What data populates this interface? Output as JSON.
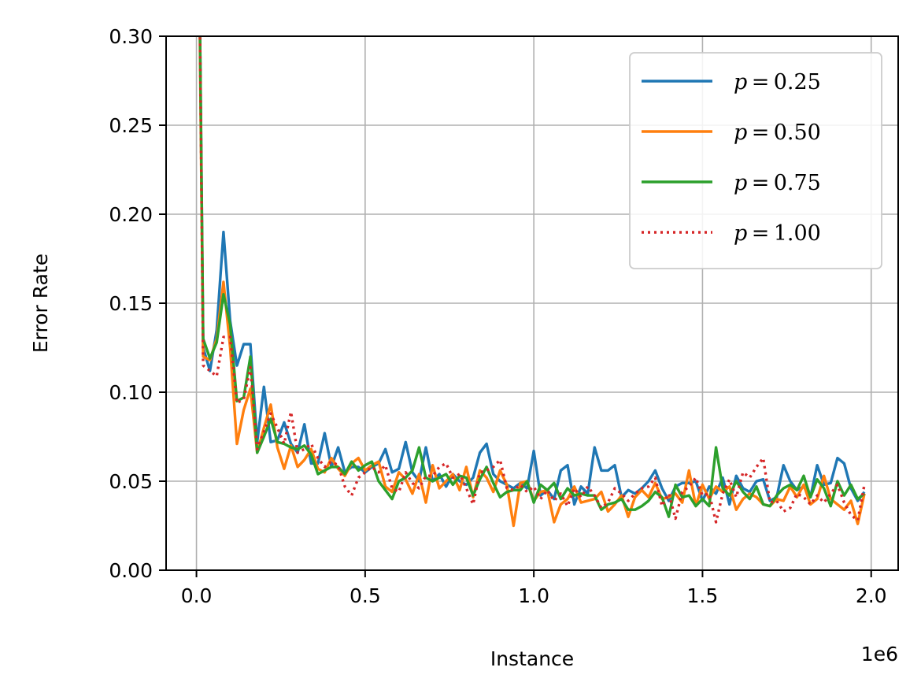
{
  "chart_data": {
    "type": "line",
    "title": "",
    "xlabel": "Instance",
    "ylabel": "Error Rate",
    "x_offset_label": "1e6",
    "xlim": [
      -90000,
      2080000
    ],
    "ylim": [
      0.0,
      0.3
    ],
    "x_ticks": [
      0,
      500000,
      1000000,
      1500000,
      2000000
    ],
    "x_tick_labels": [
      "0.0",
      "0.5",
      "1.0",
      "1.5",
      "2.0"
    ],
    "y_ticks": [
      0.0,
      0.05,
      0.1,
      0.15,
      0.2,
      0.25,
      0.3
    ],
    "y_tick_labels": [
      "0.00",
      "0.05",
      "0.10",
      "0.15",
      "0.20",
      "0.25",
      "0.30"
    ],
    "grid": true,
    "legend_position": "top-right",
    "x": [
      10000,
      20000,
      40000,
      60000,
      80000,
      100000,
      120000,
      140000,
      160000,
      180000,
      200000,
      220000,
      240000,
      260000,
      280000,
      300000,
      320000,
      340000,
      360000,
      380000,
      400000,
      420000,
      440000,
      460000,
      480000,
      500000,
      520000,
      540000,
      560000,
      580000,
      600000,
      620000,
      640000,
      660000,
      680000,
      700000,
      720000,
      740000,
      760000,
      780000,
      800000,
      820000,
      840000,
      860000,
      880000,
      900000,
      920000,
      940000,
      960000,
      980000,
      1000000,
      1020000,
      1040000,
      1060000,
      1080000,
      1100000,
      1120000,
      1140000,
      1160000,
      1180000,
      1200000,
      1220000,
      1240000,
      1260000,
      1280000,
      1300000,
      1320000,
      1340000,
      1360000,
      1380000,
      1400000,
      1420000,
      1440000,
      1460000,
      1480000,
      1500000,
      1520000,
      1540000,
      1560000,
      1580000,
      1600000,
      1620000,
      1640000,
      1660000,
      1680000,
      1700000,
      1720000,
      1740000,
      1760000,
      1780000,
      1800000,
      1820000,
      1840000,
      1860000,
      1880000,
      1900000,
      1920000,
      1940000,
      1960000,
      1980000
    ],
    "series": [
      {
        "name": "p = 0.25",
        "color": "#1f77b4",
        "dash": "solid",
        "values": [
          0.31,
          0.125,
          0.112,
          0.135,
          0.19,
          0.14,
          0.115,
          0.127,
          0.127,
          0.072,
          0.103,
          0.072,
          0.073,
          0.083,
          0.071,
          0.066,
          0.082,
          0.06,
          0.06,
          0.077,
          0.058,
          0.069,
          0.055,
          0.058,
          0.058,
          0.055,
          0.058,
          0.06,
          0.068,
          0.055,
          0.057,
          0.072,
          0.055,
          0.05,
          0.069,
          0.05,
          0.054,
          0.047,
          0.054,
          0.05,
          0.048,
          0.052,
          0.066,
          0.071,
          0.054,
          0.05,
          0.048,
          0.046,
          0.049,
          0.046,
          0.067,
          0.042,
          0.045,
          0.04,
          0.056,
          0.059,
          0.037,
          0.047,
          0.043,
          0.069,
          0.056,
          0.056,
          0.059,
          0.041,
          0.045,
          0.043,
          0.046,
          0.05,
          0.056,
          0.046,
          0.039,
          0.047,
          0.049,
          0.049,
          0.05,
          0.039,
          0.047,
          0.043,
          0.052,
          0.037,
          0.053,
          0.046,
          0.044,
          0.05,
          0.051,
          0.039,
          0.041,
          0.059,
          0.05,
          0.045,
          0.047,
          0.041,
          0.059,
          0.048,
          0.049,
          0.063,
          0.06,
          0.046,
          0.039,
          0.044
        ]
      },
      {
        "name": "p = 0.50",
        "color": "#ff7f0e",
        "dash": "solid",
        "values": [
          0.3,
          0.12,
          0.118,
          0.13,
          0.162,
          0.125,
          0.071,
          0.09,
          0.102,
          0.066,
          0.08,
          0.093,
          0.069,
          0.057,
          0.07,
          0.058,
          0.062,
          0.068,
          0.057,
          0.055,
          0.063,
          0.057,
          0.053,
          0.06,
          0.063,
          0.056,
          0.059,
          0.061,
          0.047,
          0.044,
          0.055,
          0.051,
          0.043,
          0.054,
          0.038,
          0.059,
          0.046,
          0.05,
          0.054,
          0.045,
          0.058,
          0.041,
          0.056,
          0.052,
          0.044,
          0.056,
          0.048,
          0.025,
          0.049,
          0.05,
          0.039,
          0.044,
          0.045,
          0.027,
          0.037,
          0.04,
          0.047,
          0.038,
          0.039,
          0.04,
          0.044,
          0.033,
          0.037,
          0.042,
          0.03,
          0.041,
          0.045,
          0.041,
          0.049,
          0.04,
          0.041,
          0.043,
          0.038,
          0.056,
          0.036,
          0.048,
          0.04,
          0.047,
          0.044,
          0.047,
          0.034,
          0.04,
          0.043,
          0.041,
          0.037,
          0.036,
          0.04,
          0.039,
          0.047,
          0.041,
          0.048,
          0.037,
          0.04,
          0.053,
          0.04,
          0.037,
          0.034,
          0.039,
          0.026,
          0.043
        ]
      },
      {
        "name": "p = 0.75",
        "color": "#2ca02c",
        "dash": "solid",
        "values": [
          0.31,
          0.13,
          0.119,
          0.128,
          0.155,
          0.138,
          0.095,
          0.097,
          0.12,
          0.066,
          0.075,
          0.085,
          0.072,
          0.071,
          0.069,
          0.068,
          0.07,
          0.065,
          0.054,
          0.056,
          0.058,
          0.058,
          0.054,
          0.061,
          0.056,
          0.059,
          0.061,
          0.05,
          0.045,
          0.04,
          0.05,
          0.052,
          0.056,
          0.069,
          0.052,
          0.05,
          0.052,
          0.054,
          0.048,
          0.053,
          0.052,
          0.042,
          0.051,
          0.058,
          0.049,
          0.041,
          0.044,
          0.045,
          0.045,
          0.05,
          0.038,
          0.048,
          0.045,
          0.049,
          0.04,
          0.046,
          0.042,
          0.043,
          0.042,
          0.042,
          0.034,
          0.037,
          0.038,
          0.04,
          0.034,
          0.034,
          0.036,
          0.039,
          0.044,
          0.041,
          0.03,
          0.048,
          0.041,
          0.042,
          0.036,
          0.04,
          0.036,
          0.069,
          0.046,
          0.042,
          0.05,
          0.044,
          0.04,
          0.047,
          0.037,
          0.036,
          0.042,
          0.046,
          0.048,
          0.045,
          0.053,
          0.041,
          0.051,
          0.046,
          0.036,
          0.05,
          0.042,
          0.048,
          0.04,
          0.043
        ]
      },
      {
        "name": "p = 1.00",
        "color": "#d62728",
        "dash": "dotted",
        "values": [
          0.31,
          0.115,
          0.112,
          0.109,
          0.131,
          0.131,
          0.094,
          0.096,
          0.114,
          0.068,
          0.078,
          0.088,
          0.08,
          0.071,
          0.089,
          0.066,
          0.068,
          0.071,
          0.063,
          0.058,
          0.061,
          0.059,
          0.047,
          0.042,
          0.052,
          0.055,
          0.058,
          0.055,
          0.059,
          0.046,
          0.044,
          0.055,
          0.049,
          0.046,
          0.053,
          0.053,
          0.058,
          0.06,
          0.052,
          0.054,
          0.046,
          0.037,
          0.055,
          0.056,
          0.058,
          0.062,
          0.046,
          0.045,
          0.048,
          0.044,
          0.047,
          0.04,
          0.045,
          0.039,
          0.043,
          0.036,
          0.046,
          0.041,
          0.047,
          0.042,
          0.035,
          0.038,
          0.046,
          0.043,
          0.039,
          0.043,
          0.046,
          0.047,
          0.052,
          0.036,
          0.043,
          0.029,
          0.044,
          0.047,
          0.052,
          0.042,
          0.043,
          0.027,
          0.043,
          0.051,
          0.041,
          0.055,
          0.052,
          0.058,
          0.063,
          0.038,
          0.039,
          0.033,
          0.035,
          0.043,
          0.041,
          0.037,
          0.042,
          0.038,
          0.043,
          0.048,
          0.038,
          0.031,
          0.028,
          0.048
        ]
      }
    ]
  }
}
